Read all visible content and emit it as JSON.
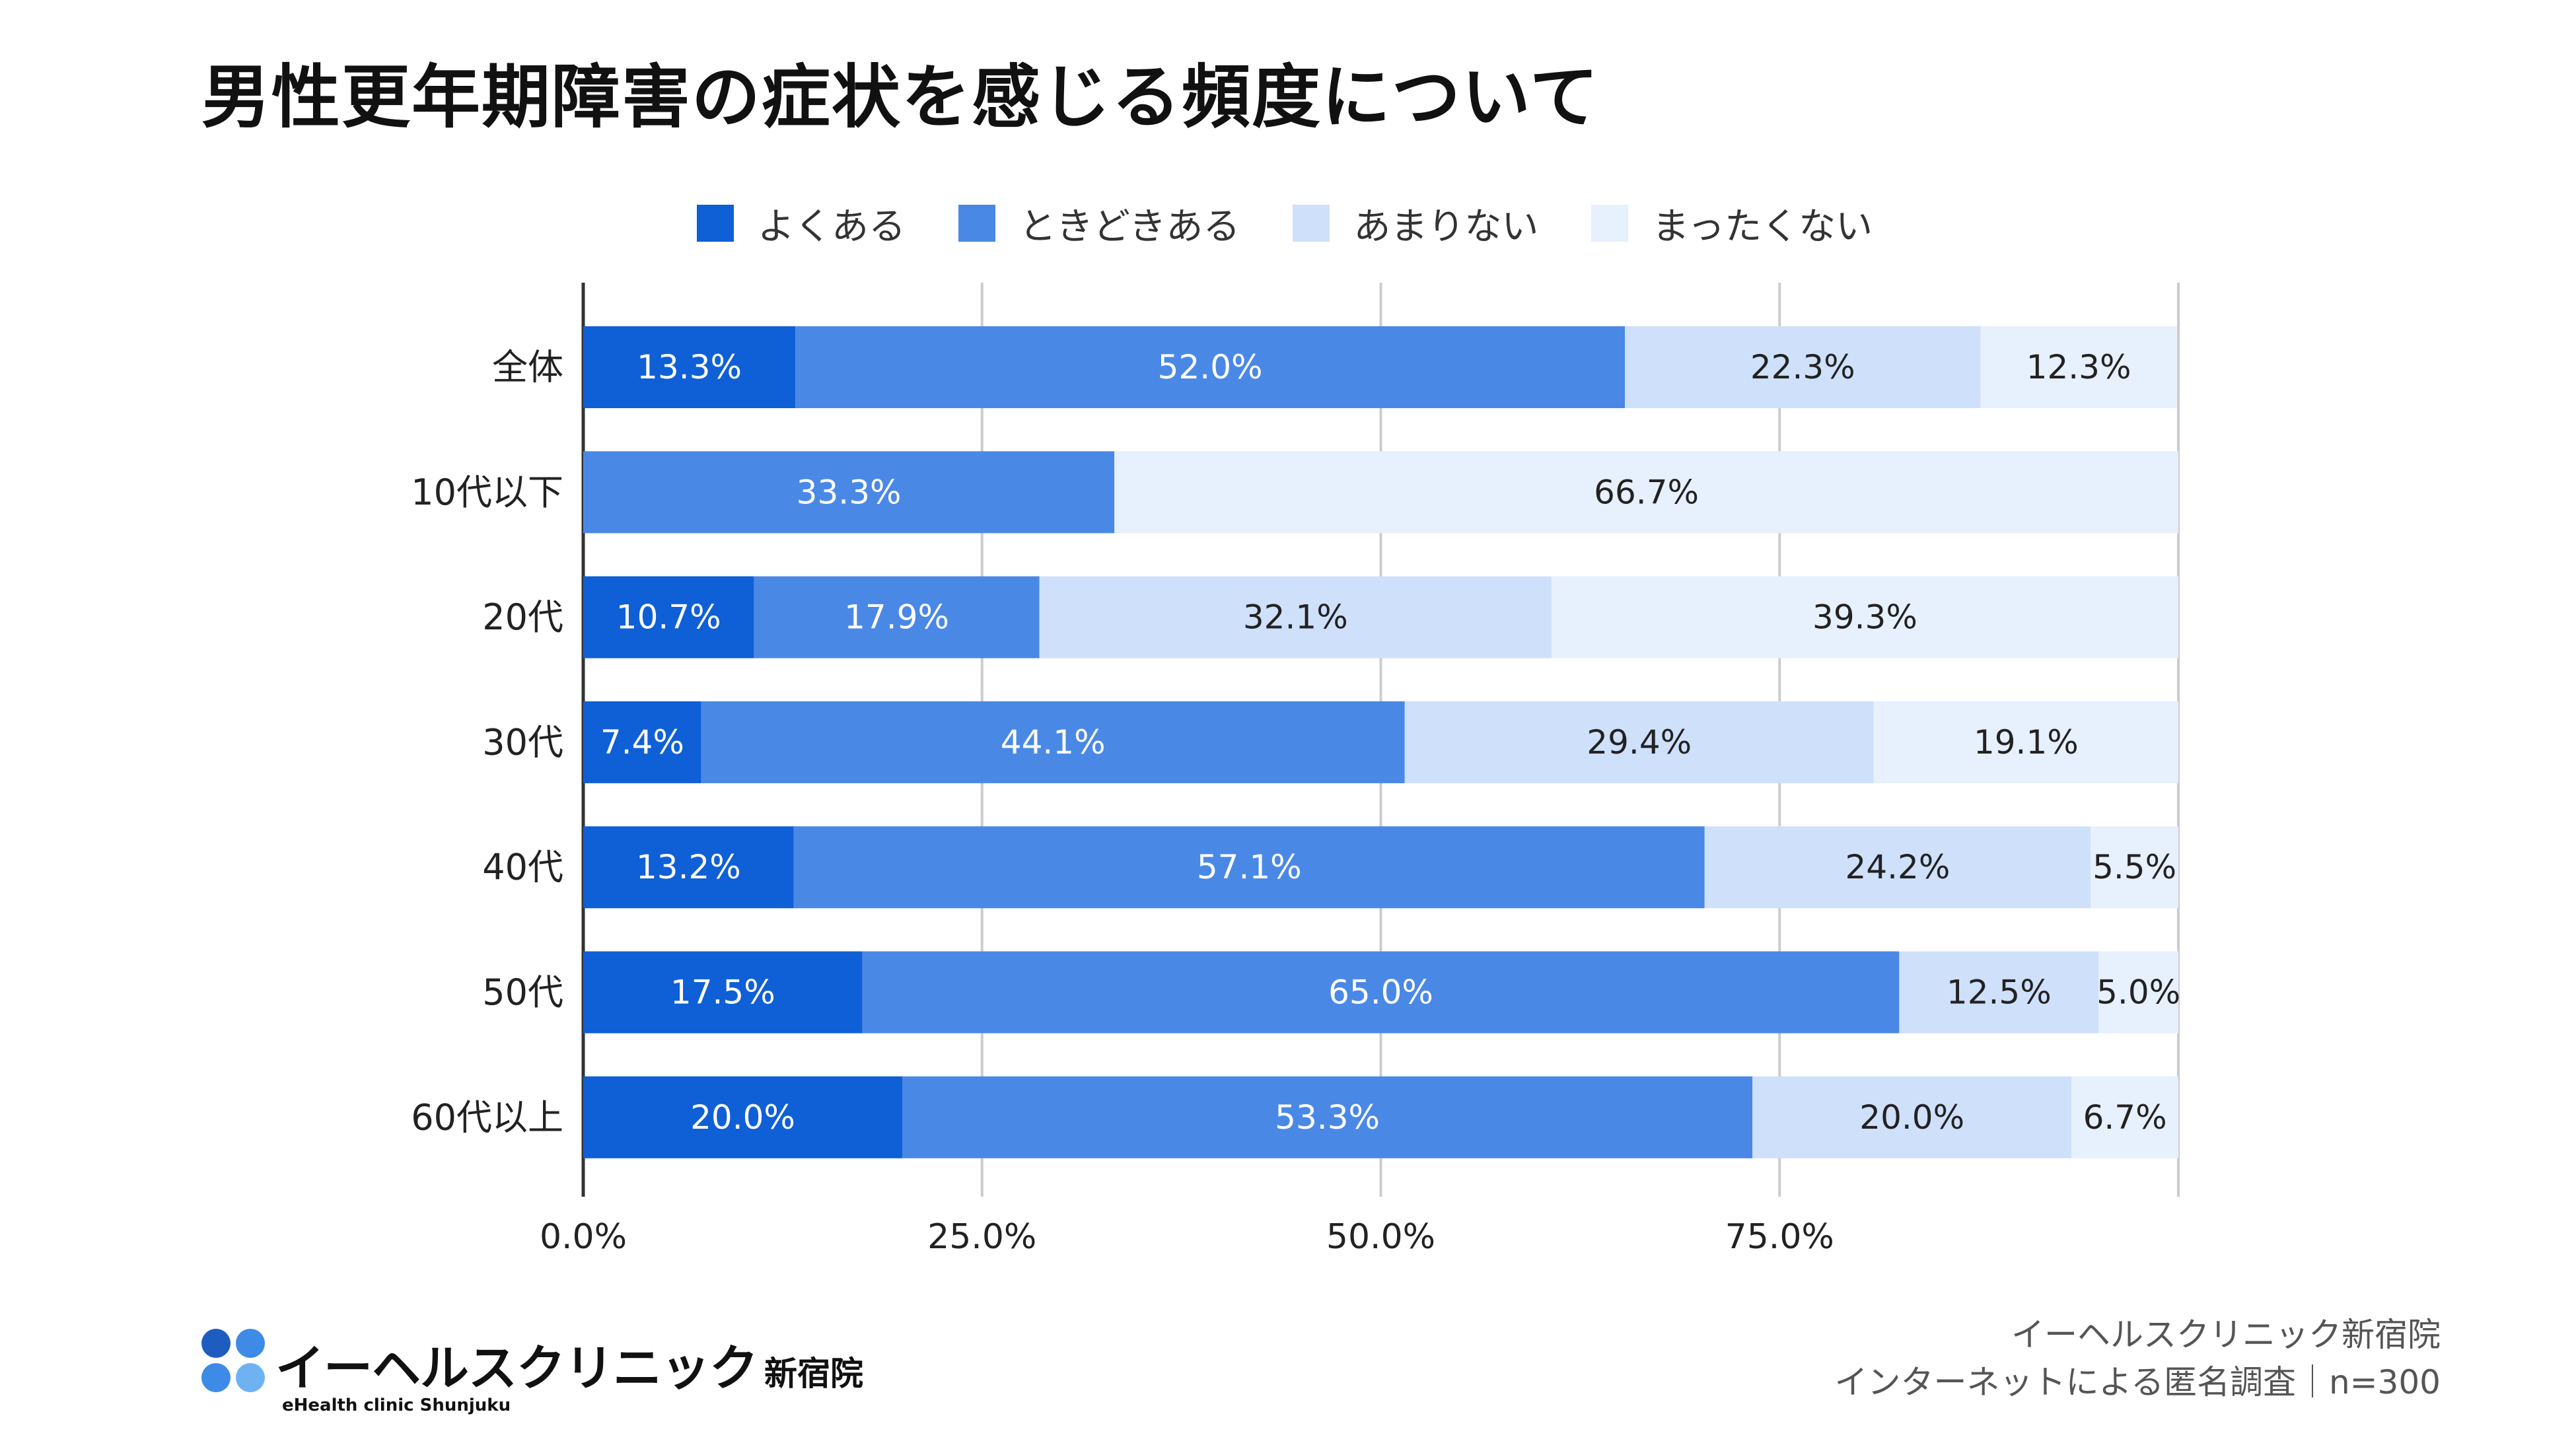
{
  "chart_data": {
    "type": "bar",
    "orientation": "horizontal",
    "stacked": true,
    "title": "男性更年期障害の症状を感じる頻度について",
    "categories": [
      "全体",
      "10代以下",
      "20代",
      "30代",
      "40代",
      "50代",
      "60代以上"
    ],
    "series": [
      {
        "name": "よくある",
        "color": "#0f5fd6",
        "values": [
          13.3,
          0,
          10.7,
          7.4,
          13.2,
          17.5,
          20.0
        ],
        "labels": [
          "13.3%",
          "",
          "10.7%",
          "7.4%",
          "13.2%",
          "17.5%",
          "20.0%"
        ]
      },
      {
        "name": "ときどきある",
        "color": "#4a88e6",
        "values": [
          52.0,
          33.3,
          17.9,
          44.1,
          57.1,
          65.0,
          53.3
        ],
        "labels": [
          "52.0%",
          "33.3%",
          "17.9%",
          "44.1%",
          "57.1%",
          "65.0%",
          "53.3%"
        ]
      },
      {
        "name": "あまりない",
        "color": "#cfe0fb",
        "values": [
          22.3,
          0,
          32.1,
          29.4,
          24.2,
          12.5,
          20.0
        ],
        "labels": [
          "22.3%",
          "",
          "32.1%",
          "29.4%",
          "24.2%",
          "12.5%",
          "20.0%"
        ]
      },
      {
        "name": "まったくない",
        "color": "#e7f0fd",
        "values": [
          12.3,
          66.7,
          39.3,
          19.1,
          5.5,
          5.0,
          6.7
        ],
        "labels": [
          "12.3%",
          "66.7%",
          "39.3%",
          "19.1%",
          "5.5%",
          "5.0%",
          "6.7%"
        ]
      }
    ],
    "xlim": [
      0,
      100
    ],
    "xticks": [
      "0.0%",
      "25.0%",
      "50.0%",
      "75.0%"
    ],
    "xtick_values": [
      0,
      25,
      50,
      75
    ],
    "grid": true,
    "legend_position": "top"
  },
  "footer": {
    "logo_text": "イーヘルスクリニック",
    "logo_branch": "新宿院",
    "logo_subtext": "eHealth clinic Shunjuku",
    "source_line1": "イーヘルスクリニック新宿院",
    "source_line2": "インターネットによる匿名調査｜n=300"
  },
  "colors": {
    "dark_label_text": "#222222",
    "light_label_text": "#ffffff",
    "grid": "#cccccc",
    "axis": "#333333"
  }
}
